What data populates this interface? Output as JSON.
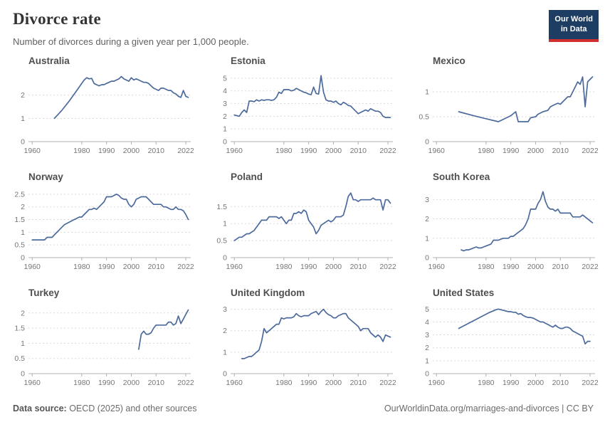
{
  "header": {
    "title": "Divorce rate",
    "subtitle": "Number of divorces during a given year per 1,000 people.",
    "logo": {
      "line1": "Our World",
      "line2": "in Data"
    }
  },
  "footer": {
    "source_label": "Data source:",
    "source_text": " OECD (2025) and other sources",
    "right_text": "OurWorldinData.org/marriages-and-divorces | CC BY"
  },
  "colors": {
    "line": "#4c6a9c",
    "grid": "#d9d9d9",
    "axis": "#b0b0b0",
    "tick_label": "#767676",
    "logo_bg": "#1d3d63",
    "logo_red": "#cf2f2f"
  },
  "chart_data": [
    {
      "type": "line",
      "title": "Australia",
      "xlim": [
        1958.5,
        2024
      ],
      "xticks": [
        1960,
        1980,
        1990,
        2000,
        2010,
        2022
      ],
      "ylim": [
        0,
        3
      ],
      "yticks": [
        0,
        1,
        2
      ],
      "x": [
        1969,
        1972,
        1975,
        1978,
        1980,
        1981,
        1982,
        1983,
        1984,
        1985,
        1986,
        1987,
        1988,
        1989,
        1990,
        1991,
        1992,
        1993,
        1994,
        1995,
        1996,
        1997,
        1998,
        1999,
        2000,
        2001,
        2002,
        2003,
        2004,
        2005,
        2006,
        2007,
        2008,
        2009,
        2010,
        2011,
        2012,
        2013,
        2014,
        2015,
        2016,
        2017,
        2018,
        2019,
        2020,
        2021,
        2022,
        2023
      ],
      "values": [
        1.0,
        1.35,
        1.75,
        2.2,
        2.5,
        2.65,
        2.75,
        2.7,
        2.72,
        2.5,
        2.45,
        2.4,
        2.45,
        2.45,
        2.5,
        2.55,
        2.6,
        2.6,
        2.65,
        2.7,
        2.8,
        2.7,
        2.65,
        2.6,
        2.75,
        2.65,
        2.7,
        2.65,
        2.6,
        2.55,
        2.55,
        2.5,
        2.4,
        2.3,
        2.25,
        2.2,
        2.3,
        2.3,
        2.25,
        2.2,
        2.2,
        2.1,
        2.05,
        1.95,
        1.9,
        2.2,
        1.95,
        1.9
      ]
    },
    {
      "type": "line",
      "title": "Estonia",
      "xlim": [
        1958.5,
        2024
      ],
      "xticks": [
        1960,
        1980,
        1990,
        2000,
        2010,
        2022
      ],
      "ylim": [
        0,
        5.5
      ],
      "yticks": [
        0,
        1,
        2,
        3,
        4,
        5
      ],
      "x": [
        1960,
        1961,
        1962,
        1963,
        1964,
        1965,
        1966,
        1967,
        1968,
        1969,
        1970,
        1971,
        1972,
        1973,
        1974,
        1975,
        1976,
        1977,
        1978,
        1979,
        1980,
        1981,
        1982,
        1983,
        1984,
        1985,
        1986,
        1987,
        1988,
        1989,
        1990,
        1991,
        1992,
        1993,
        1994,
        1995,
        1996,
        1997,
        1998,
        1999,
        2000,
        2001,
        2002,
        2003,
        2004,
        2005,
        2006,
        2007,
        2008,
        2009,
        2010,
        2011,
        2012,
        2013,
        2014,
        2015,
        2016,
        2017,
        2018,
        2019,
        2020,
        2021,
        2022,
        2023
      ],
      "values": [
        2.1,
        2.05,
        2.0,
        2.3,
        2.5,
        2.3,
        3.2,
        3.2,
        3.15,
        3.3,
        3.2,
        3.3,
        3.25,
        3.3,
        3.3,
        3.25,
        3.3,
        3.5,
        3.9,
        3.8,
        4.1,
        4.1,
        4.1,
        4.0,
        4.05,
        4.2,
        4.1,
        4.0,
        3.9,
        3.85,
        3.75,
        3.7,
        4.3,
        3.8,
        3.75,
        5.2,
        3.9,
        3.3,
        3.2,
        3.2,
        3.1,
        3.2,
        3.0,
        2.9,
        3.1,
        3.0,
        2.85,
        2.8,
        2.6,
        2.4,
        2.2,
        2.3,
        2.4,
        2.5,
        2.4,
        2.6,
        2.5,
        2.4,
        2.4,
        2.3,
        2.0,
        1.9,
        1.9,
        1.9
      ]
    },
    {
      "type": "line",
      "title": "Mexico",
      "xlim": [
        1958.5,
        2024
      ],
      "xticks": [
        1960,
        1980,
        1990,
        2000,
        2010,
        2022
      ],
      "ylim": [
        0,
        1.4
      ],
      "yticks": [
        0,
        0.5,
        1
      ],
      "x": [
        1969,
        1975,
        1980,
        1985,
        1990,
        1992,
        1993,
        1995,
        1997,
        1998,
        2000,
        2001,
        2003,
        2005,
        2006,
        2008,
        2009,
        2010,
        2011,
        2012,
        2013,
        2014,
        2015,
        2016,
        2017,
        2018,
        2019,
        2020,
        2021,
        2022,
        2023
      ],
      "values": [
        0.6,
        0.52,
        0.46,
        0.4,
        0.52,
        0.6,
        0.4,
        0.4,
        0.4,
        0.48,
        0.5,
        0.55,
        0.6,
        0.63,
        0.7,
        0.75,
        0.77,
        0.75,
        0.8,
        0.85,
        0.9,
        0.9,
        1.0,
        1.1,
        1.2,
        1.15,
        1.3,
        0.7,
        1.2,
        1.25,
        1.3
      ]
    },
    {
      "type": "line",
      "title": "Norway",
      "xlim": [
        1958.5,
        2024
      ],
      "xticks": [
        1960,
        1980,
        1990,
        2000,
        2010,
        2022
      ],
      "ylim": [
        0,
        2.75
      ],
      "yticks": [
        0,
        0.5,
        1,
        1.5,
        2,
        2.5
      ],
      "x": [
        1960,
        1961,
        1962,
        1963,
        1964,
        1965,
        1966,
        1967,
        1968,
        1969,
        1970,
        1971,
        1972,
        1973,
        1974,
        1975,
        1976,
        1977,
        1978,
        1979,
        1980,
        1981,
        1982,
        1983,
        1984,
        1985,
        1986,
        1987,
        1988,
        1989,
        1990,
        1991,
        1992,
        1993,
        1994,
        1995,
        1996,
        1997,
        1998,
        1999,
        2000,
        2001,
        2002,
        2003,
        2004,
        2005,
        2006,
        2007,
        2008,
        2009,
        2010,
        2011,
        2012,
        2013,
        2014,
        2015,
        2016,
        2017,
        2018,
        2019,
        2020,
        2021,
        2022,
        2023
      ],
      "values": [
        0.7,
        0.7,
        0.7,
        0.7,
        0.7,
        0.7,
        0.8,
        0.8,
        0.8,
        0.9,
        1.0,
        1.1,
        1.2,
        1.3,
        1.35,
        1.4,
        1.45,
        1.5,
        1.55,
        1.6,
        1.6,
        1.7,
        1.8,
        1.9,
        1.9,
        1.95,
        1.9,
        2.0,
        2.1,
        2.2,
        2.4,
        2.4,
        2.4,
        2.45,
        2.5,
        2.45,
        2.35,
        2.3,
        2.3,
        2.1,
        2.0,
        2.1,
        2.3,
        2.35,
        2.4,
        2.4,
        2.4,
        2.3,
        2.2,
        2.1,
        2.1,
        2.1,
        2.1,
        2.0,
        2.0,
        1.95,
        1.9,
        1.9,
        2.0,
        1.9,
        1.9,
        1.85,
        1.7,
        1.5
      ]
    },
    {
      "type": "line",
      "title": "Poland",
      "xlim": [
        1958.5,
        2024
      ],
      "xticks": [
        1960,
        1980,
        1990,
        2000,
        2010,
        2022
      ],
      "ylim": [
        0,
        2.05
      ],
      "yticks": [
        0,
        0.5,
        1,
        1.5
      ],
      "x": [
        1960,
        1961,
        1962,
        1963,
        1964,
        1965,
        1966,
        1967,
        1968,
        1969,
        1970,
        1971,
        1972,
        1973,
        1974,
        1975,
        1976,
        1977,
        1978,
        1979,
        1980,
        1981,
        1982,
        1983,
        1984,
        1985,
        1986,
        1987,
        1988,
        1989,
        1990,
        1991,
        1992,
        1993,
        1994,
        1995,
        1996,
        1997,
        1998,
        1999,
        2000,
        2001,
        2002,
        2003,
        2004,
        2005,
        2006,
        2007,
        2008,
        2009,
        2010,
        2011,
        2012,
        2013,
        2014,
        2015,
        2016,
        2017,
        2018,
        2019,
        2020,
        2021,
        2022,
        2023
      ],
      "values": [
        0.5,
        0.55,
        0.6,
        0.6,
        0.65,
        0.7,
        0.7,
        0.75,
        0.8,
        0.9,
        1.0,
        1.1,
        1.1,
        1.1,
        1.2,
        1.2,
        1.2,
        1.2,
        1.15,
        1.2,
        1.1,
        1.0,
        1.1,
        1.1,
        1.3,
        1.3,
        1.35,
        1.3,
        1.4,
        1.35,
        1.1,
        1.0,
        0.9,
        0.7,
        0.8,
        0.95,
        1.0,
        1.05,
        1.1,
        1.05,
        1.1,
        1.2,
        1.2,
        1.2,
        1.25,
        1.5,
        1.8,
        1.9,
        1.7,
        1.7,
        1.65,
        1.7,
        1.7,
        1.7,
        1.7,
        1.7,
        1.75,
        1.7,
        1.7,
        1.7,
        1.4,
        1.7,
        1.7,
        1.6
      ]
    },
    {
      "type": "line",
      "title": "South Korea",
      "xlim": [
        1958.5,
        2024
      ],
      "xticks": [
        1960,
        1980,
        1990,
        2000,
        2010,
        2022
      ],
      "ylim": [
        0,
        3.6
      ],
      "yticks": [
        0,
        1,
        2,
        3
      ],
      "x": [
        1970,
        1971,
        1972,
        1973,
        1974,
        1975,
        1976,
        1977,
        1978,
        1979,
        1980,
        1981,
        1982,
        1983,
        1984,
        1985,
        1986,
        1987,
        1988,
        1989,
        1990,
        1991,
        1992,
        1993,
        1994,
        1995,
        1996,
        1997,
        1998,
        1999,
        2000,
        2001,
        2002,
        2003,
        2004,
        2005,
        2006,
        2007,
        2008,
        2009,
        2010,
        2011,
        2012,
        2013,
        2014,
        2015,
        2016,
        2017,
        2018,
        2019,
        2020,
        2021,
        2022,
        2023
      ],
      "values": [
        0.4,
        0.35,
        0.4,
        0.4,
        0.45,
        0.5,
        0.55,
        0.5,
        0.5,
        0.55,
        0.6,
        0.65,
        0.7,
        0.9,
        0.9,
        0.9,
        0.95,
        1.0,
        1.0,
        1.0,
        1.1,
        1.1,
        1.2,
        1.3,
        1.4,
        1.5,
        1.7,
        2.0,
        2.5,
        2.5,
        2.5,
        2.8,
        3.0,
        3.4,
        2.9,
        2.6,
        2.5,
        2.5,
        2.4,
        2.5,
        2.3,
        2.3,
        2.3,
        2.3,
        2.3,
        2.1,
        2.1,
        2.1,
        2.1,
        2.2,
        2.1,
        2.0,
        1.9,
        1.8
      ]
    },
    {
      "type": "line",
      "title": "Turkey",
      "xlim": [
        1958.5,
        2024
      ],
      "xticks": [
        1960,
        1980,
        1990,
        2000,
        2010,
        2022
      ],
      "ylim": [
        0,
        2.3
      ],
      "yticks": [
        0,
        0.5,
        1,
        1.5,
        2
      ],
      "x": [
        2003,
        2004,
        2005,
        2006,
        2007,
        2008,
        2009,
        2010,
        2011,
        2012,
        2013,
        2014,
        2015,
        2016,
        2017,
        2018,
        2019,
        2020,
        2021,
        2022,
        2023
      ],
      "values": [
        0.8,
        1.3,
        1.4,
        1.3,
        1.3,
        1.35,
        1.5,
        1.6,
        1.6,
        1.6,
        1.6,
        1.6,
        1.7,
        1.7,
        1.6,
        1.65,
        1.9,
        1.65,
        1.8,
        1.95,
        2.1
      ]
    },
    {
      "type": "line",
      "title": "United Kingdom",
      "xlim": [
        1958.5,
        2024
      ],
      "xticks": [
        1960,
        1980,
        1990,
        2000,
        2010,
        2022
      ],
      "ylim": [
        0,
        3.25
      ],
      "yticks": [
        0,
        1,
        2,
        3
      ],
      "x": [
        1963,
        1964,
        1965,
        1966,
        1967,
        1968,
        1969,
        1970,
        1971,
        1972,
        1973,
        1974,
        1975,
        1976,
        1977,
        1978,
        1979,
        1980,
        1981,
        1982,
        1983,
        1984,
        1985,
        1986,
        1987,
        1988,
        1989,
        1990,
        1991,
        1992,
        1993,
        1994,
        1995,
        1996,
        1997,
        1998,
        1999,
        2000,
        2001,
        2002,
        2003,
        2004,
        2005,
        2006,
        2007,
        2008,
        2009,
        2010,
        2011,
        2012,
        2013,
        2014,
        2015,
        2016,
        2017,
        2018,
        2019,
        2020,
        2021,
        2022,
        2023
      ],
      "values": [
        0.7,
        0.7,
        0.75,
        0.8,
        0.8,
        0.9,
        1.0,
        1.1,
        1.5,
        2.1,
        1.9,
        2.0,
        2.1,
        2.2,
        2.3,
        2.3,
        2.6,
        2.55,
        2.6,
        2.6,
        2.6,
        2.65,
        2.8,
        2.7,
        2.65,
        2.7,
        2.7,
        2.7,
        2.8,
        2.85,
        2.9,
        2.75,
        2.9,
        3.0,
        2.85,
        2.75,
        2.7,
        2.6,
        2.6,
        2.7,
        2.75,
        2.8,
        2.8,
        2.6,
        2.5,
        2.4,
        2.3,
        2.2,
        2.0,
        2.1,
        2.1,
        2.1,
        1.9,
        1.8,
        1.7,
        1.8,
        1.7,
        1.5,
        1.8,
        1.75,
        1.7
      ]
    },
    {
      "type": "line",
      "title": "United States",
      "xlim": [
        1958.5,
        2024
      ],
      "xticks": [
        1960,
        1980,
        1990,
        2000,
        2010,
        2022
      ],
      "ylim": [
        0,
        5.4
      ],
      "yticks": [
        0,
        1,
        2,
        3,
        4,
        5
      ],
      "x": [
        1969,
        1972,
        1975,
        1978,
        1981,
        1984,
        1985,
        1986,
        1987,
        1988,
        1989,
        1990,
        1991,
        1992,
        1993,
        1994,
        1995,
        1996,
        1997,
        1998,
        1999,
        2000,
        2001,
        2002,
        2003,
        2004,
        2005,
        2006,
        2007,
        2008,
        2009,
        2010,
        2011,
        2012,
        2013,
        2014,
        2015,
        2016,
        2017,
        2018,
        2019,
        2020,
        2021,
        2022
      ],
      "values": [
        3.5,
        3.8,
        4.1,
        4.4,
        4.7,
        4.95,
        5.0,
        4.95,
        4.9,
        4.85,
        4.8,
        4.8,
        4.75,
        4.75,
        4.6,
        4.65,
        4.5,
        4.4,
        4.35,
        4.35,
        4.3,
        4.2,
        4.1,
        4.0,
        4.0,
        3.9,
        3.8,
        3.7,
        3.6,
        3.75,
        3.6,
        3.5,
        3.5,
        3.6,
        3.6,
        3.5,
        3.3,
        3.2,
        3.1,
        3.0,
        2.9,
        2.3,
        2.5,
        2.5
      ]
    }
  ]
}
